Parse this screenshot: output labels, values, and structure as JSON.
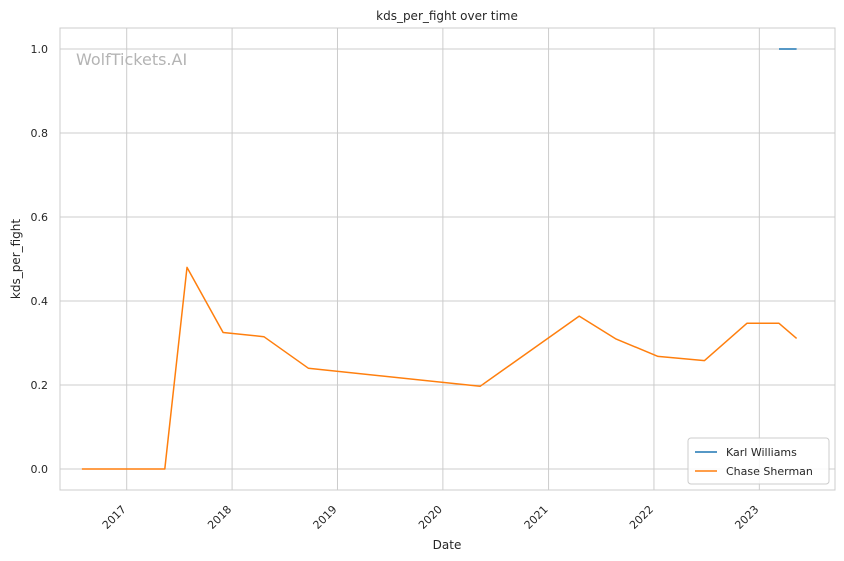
{
  "chart_data": {
    "type": "line",
    "title": "kds_per_fight over time",
    "xlabel": "Date",
    "ylabel": "kds_per_fight",
    "watermark": "WolfTickets.AI",
    "x_tick_labels": [
      "2017",
      "2018",
      "2019",
      "2020",
      "2021",
      "2022",
      "2023"
    ],
    "y_ticks": [
      0.0,
      0.2,
      0.4,
      0.6,
      0.8,
      1.0
    ],
    "y_tick_labels": [
      "0.0",
      "0.2",
      "0.4",
      "0.6",
      "0.8",
      "1.0"
    ],
    "ylim": [
      -0.05,
      1.05
    ],
    "xlim": [
      "2016-05-15",
      "2023-09-20"
    ],
    "grid": true,
    "legend_position": "lower-right",
    "series": [
      {
        "name": "Karl Williams",
        "color": "#1f77b4",
        "points": [
          {
            "x": "2023-03-10",
            "y": 1.0
          },
          {
            "x": "2023-05-10",
            "y": 1.0
          }
        ]
      },
      {
        "name": "Chase Sherman",
        "color": "#ff7f0e",
        "points": [
          {
            "x": "2016-07-30",
            "y": 0.0
          },
          {
            "x": "2017-05-13",
            "y": 0.0
          },
          {
            "x": "2017-07-29",
            "y": 0.48
          },
          {
            "x": "2017-12-01",
            "y": 0.325
          },
          {
            "x": "2018-04-21",
            "y": 0.315
          },
          {
            "x": "2018-09-22",
            "y": 0.24
          },
          {
            "x": "2020-05-09",
            "y": 0.197
          },
          {
            "x": "2021-04-17",
            "y": 0.364
          },
          {
            "x": "2021-08-21",
            "y": 0.31
          },
          {
            "x": "2022-01-15",
            "y": 0.268
          },
          {
            "x": "2022-06-25",
            "y": 0.258
          },
          {
            "x": "2022-11-19",
            "y": 0.347
          },
          {
            "x": "2023-03-10",
            "y": 0.347
          },
          {
            "x": "2023-05-10",
            "y": 0.311
          }
        ]
      }
    ]
  }
}
